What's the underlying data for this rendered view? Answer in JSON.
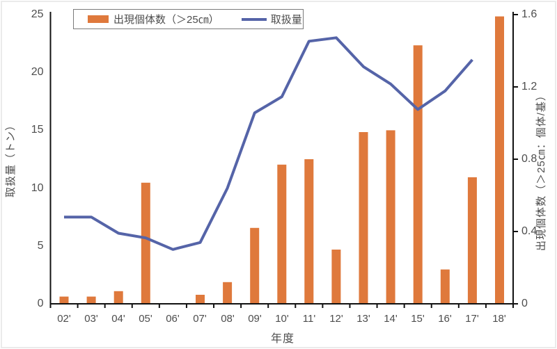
{
  "chart_data": {
    "type": "combo-bar-line",
    "title": "",
    "categories": [
      "02'",
      "03'",
      "04'",
      "05'",
      "06'",
      "07'",
      "08'",
      "09'",
      "10'",
      "11'",
      "12'",
      "13'",
      "14'",
      "15'",
      "16'",
      "17'",
      "18'"
    ],
    "series": [
      {
        "name": "出現個体数（＞25㎝）",
        "type": "bar",
        "axis": "right",
        "values": [
          0.04,
          0.04,
          0.07,
          0.67,
          0,
          0.05,
          0.12,
          0.42,
          0.77,
          0.8,
          0.3,
          0.95,
          0.96,
          1.43,
          0.19,
          0.7,
          1.59
        ]
      },
      {
        "name": "取扱量",
        "type": "line",
        "axis": "left",
        "values": [
          7.5,
          7.5,
          6.1,
          5.7,
          4.7,
          5.3,
          10.0,
          16.5,
          17.9,
          22.7,
          23.0,
          20.5,
          19.0,
          16.8,
          18.4,
          21.1,
          null
        ]
      }
    ],
    "x_axis": {
      "title": "年度"
    },
    "left_axis": {
      "title": "取扱量（トン）",
      "min": 0,
      "max": 25,
      "ticks": [
        0,
        5,
        10,
        15,
        20,
        25
      ]
    },
    "right_axis": {
      "title": "出現個体数（＞25㎝：個体/基）",
      "min": 0,
      "max": 1.6,
      "ticks": [
        0,
        0.4,
        0.8,
        1.2,
        1.6
      ]
    },
    "legend_position": "top",
    "grid": false,
    "colors": {
      "bar": "#DF793C",
      "line": "#5564A8",
      "axis": "#111111",
      "text": "#4d4d4d",
      "legend_border": "#7a7a7a"
    }
  }
}
